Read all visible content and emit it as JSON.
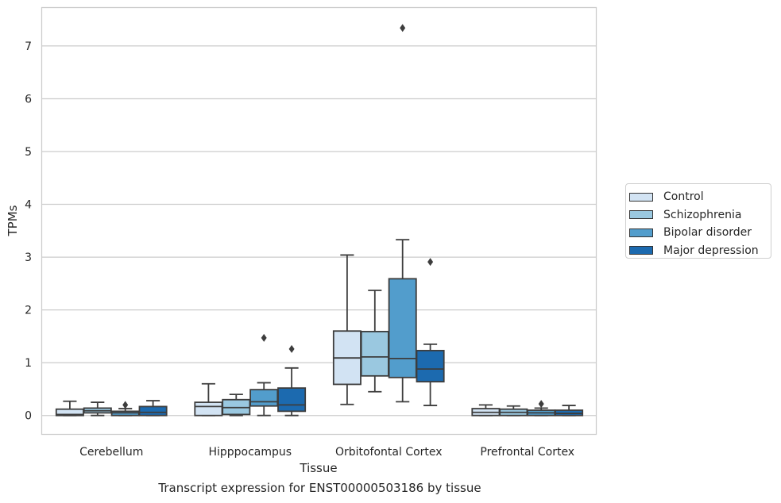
{
  "caption": "Transcript expression for ENST00000503186 by tissue",
  "chart_data": {
    "type": "boxplot",
    "xlabel": "Tissue",
    "ylabel": "TPMs",
    "ylim": [
      -0.35,
      7.72
    ],
    "yticks": [
      0,
      1,
      2,
      3,
      4,
      5,
      6,
      7
    ],
    "grid": "horizontal",
    "legend_position": "right",
    "categories": [
      "Cerebellum",
      "Hipppocampus",
      "Orbitofontal Cortex",
      "Prefrontal Cortex"
    ],
    "series": [
      {
        "name": "Control",
        "color": "#d2e3f3",
        "boxes": [
          {
            "whisker_low": 0.0,
            "q1": 0.0,
            "median": 0.02,
            "q3": 0.12,
            "whisker_high": 0.27,
            "outliers": []
          },
          {
            "whisker_low": 0.0,
            "q1": 0.0,
            "median": 0.17,
            "q3": 0.25,
            "whisker_high": 0.6,
            "outliers": []
          },
          {
            "whisker_low": 0.21,
            "q1": 0.59,
            "median": 1.09,
            "q3": 1.6,
            "whisker_high": 3.04,
            "outliers": []
          },
          {
            "whisker_low": 0.0,
            "q1": 0.0,
            "median": 0.06,
            "q3": 0.13,
            "whisker_high": 0.2,
            "outliers": []
          }
        ]
      },
      {
        "name": "Schizophrenia",
        "color": "#9ac8e0",
        "boxes": [
          {
            "whisker_low": 0.0,
            "q1": 0.05,
            "median": 0.09,
            "q3": 0.14,
            "whisker_high": 0.25,
            "outliers": []
          },
          {
            "whisker_low": 0.0,
            "q1": 0.02,
            "median": 0.15,
            "q3": 0.3,
            "whisker_high": 0.4,
            "outliers": []
          },
          {
            "whisker_low": 0.45,
            "q1": 0.75,
            "median": 1.11,
            "q3": 1.59,
            "whisker_high": 2.37,
            "outliers": []
          },
          {
            "whisker_low": 0.0,
            "q1": 0.0,
            "median": 0.06,
            "q3": 0.12,
            "whisker_high": 0.18,
            "outliers": []
          }
        ]
      },
      {
        "name": "Bipolar disorder",
        "color": "#529dcc",
        "boxes": [
          {
            "whisker_low": 0.0,
            "q1": 0.0,
            "median": 0.05,
            "q3": 0.08,
            "whisker_high": 0.13,
            "outliers": [
              0.2
            ]
          },
          {
            "whisker_low": 0.0,
            "q1": 0.18,
            "median": 0.26,
            "q3": 0.49,
            "whisker_high": 0.62,
            "outliers": [
              1.47
            ]
          },
          {
            "whisker_low": 0.26,
            "q1": 0.72,
            "median": 1.08,
            "q3": 2.59,
            "whisker_high": 3.33,
            "outliers": [
              7.34
            ]
          },
          {
            "whisker_low": 0.0,
            "q1": 0.0,
            "median": 0.05,
            "q3": 0.1,
            "whisker_high": 0.14,
            "outliers": [
              0.22
            ]
          }
        ]
      },
      {
        "name": "Major depression",
        "color": "#1c6aaf",
        "boxes": [
          {
            "whisker_low": 0.0,
            "q1": 0.0,
            "median": 0.06,
            "q3": 0.17,
            "whisker_high": 0.28,
            "outliers": []
          },
          {
            "whisker_low": 0.0,
            "q1": 0.08,
            "median": 0.2,
            "q3": 0.52,
            "whisker_high": 0.9,
            "outliers": [
              1.26
            ]
          },
          {
            "whisker_low": 0.19,
            "q1": 0.64,
            "median": 0.88,
            "q3": 1.23,
            "whisker_high": 1.35,
            "outliers": [
              2.91
            ]
          },
          {
            "whisker_low": 0.0,
            "q1": 0.0,
            "median": 0.04,
            "q3": 0.1,
            "whisker_high": 0.19,
            "outliers": []
          }
        ]
      }
    ]
  }
}
